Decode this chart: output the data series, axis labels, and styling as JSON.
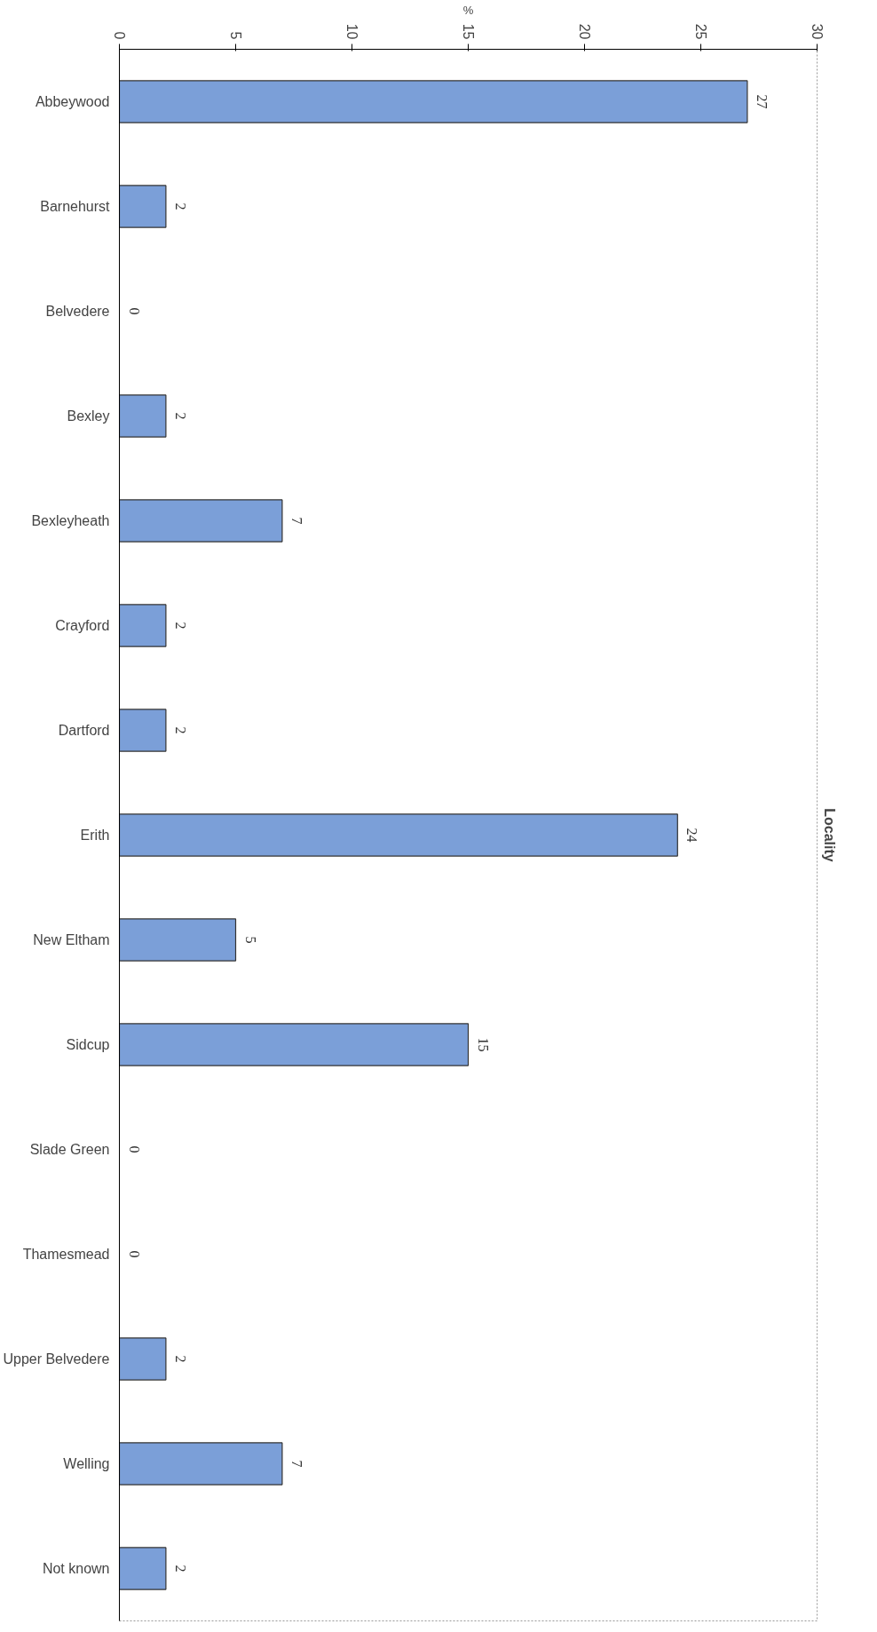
{
  "chart_data": {
    "type": "bar",
    "orientation": "horizontal",
    "xlabel": "%",
    "ylabel": "Locality",
    "categories": [
      "Abbeywood",
      "Barnehurst",
      "Belvedere",
      "Bexley",
      "Bexleyheath",
      "Crayford",
      "Dartford",
      "Erith",
      "New Eltham",
      "Sidcup",
      "Slade Green",
      "Thamesmead",
      "Upper Belvedere",
      "Welling",
      "Not known"
    ],
    "values": [
      27,
      2,
      0,
      2,
      7,
      2,
      2,
      24,
      5,
      15,
      0,
      0,
      2,
      7,
      2
    ],
    "color": "#7b9fd8",
    "xlim": [
      0,
      30
    ],
    "xticks": [
      0,
      5,
      10,
      15,
      20,
      25,
      30
    ],
    "data_labels": true,
    "grid": false
  }
}
